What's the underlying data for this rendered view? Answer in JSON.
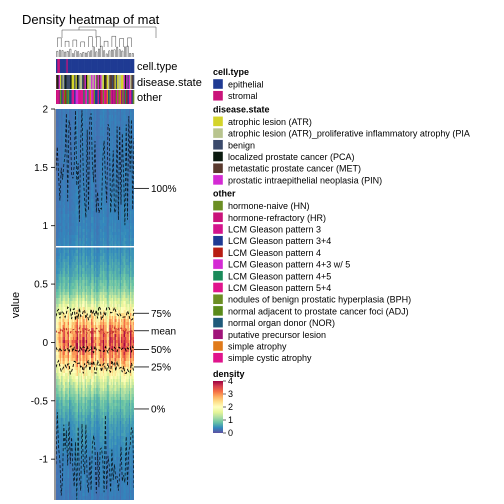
{
  "chart_data": {
    "type": "heatmap",
    "subtype": "density-heatmap",
    "title": "Density heatmap of mat",
    "ylabel": "value",
    "xlabel": "",
    "ylim": [
      -1.35,
      2.0
    ],
    "y_ticks": [
      -1,
      -0.5,
      0,
      0.5,
      1,
      1.5,
      2
    ],
    "y_tick_labels": [
      "-1",
      "-0.5",
      "0",
      "0.5",
      "1",
      "1.5",
      "2"
    ],
    "quantile_labels": [
      {
        "label": "100%",
        "value": 1.32
      },
      {
        "label": "75%",
        "value": 0.25
      },
      {
        "label": "mean",
        "value": 0.1
      },
      {
        "label": "50%",
        "value": -0.06
      },
      {
        "label": "25%",
        "value": -0.21
      },
      {
        "label": "0%",
        "value": -0.57
      }
    ],
    "separator_value": 0.82,
    "n_columns": 60,
    "density_profile": {
      "y": [
        2.0,
        1.5,
        1.0,
        0.82,
        0.6,
        0.45,
        0.35,
        0.25,
        0.15,
        0.05,
        0.0,
        -0.05,
        -0.15,
        -0.25,
        -0.35,
        -0.5,
        -0.7,
        -1.0,
        -1.35
      ],
      "density": [
        0.3,
        0.3,
        0.35,
        0.4,
        0.6,
        0.9,
        1.4,
        2.0,
        2.6,
        3.0,
        3.2,
        3.0,
        2.6,
        2.0,
        1.4,
        0.8,
        0.5,
        0.35,
        0.3
      ]
    },
    "annotations": [
      {
        "name": "cell.type",
        "label": "cell.type"
      },
      {
        "name": "disease.state",
        "label": "disease.state"
      },
      {
        "name": "other",
        "label": "other"
      }
    ],
    "legend": [
      {
        "title": "cell.type",
        "items": [
          {
            "label": "epithelial",
            "color": "#1f3a93"
          },
          {
            "label": "stromal",
            "color": "#c9137a"
          }
        ]
      },
      {
        "title": "disease.state",
        "items": [
          {
            "label": "atrophic lesion (ATR)",
            "color": "#d4d42a"
          },
          {
            "label": "atrophic lesion (ATR)_proliferative inflammatory atrophy (PIA",
            "color": "#b8c48e"
          },
          {
            "label": "benign",
            "color": "#3b4a6b"
          },
          {
            "label": "localized prostate cancer (PCA)",
            "color": "#0b1a0f"
          },
          {
            "label": "metastatic prostate cancer  (MET)",
            "color": "#5a3a2e"
          },
          {
            "label": "prostatic intraepithelial neoplasia (PIN)",
            "color": "#d42ad4"
          }
        ]
      },
      {
        "title": "other",
        "items": [
          {
            "label": "hormone-naive  (HN)",
            "color": "#6b8e23"
          },
          {
            "label": "hormone-refractory (HR)",
            "color": "#c9137a"
          },
          {
            "label": "LCM Gleason pattern 3",
            "color": "#d4148c"
          },
          {
            "label": "LCM Gleason pattern 3+4",
            "color": "#1f3a93"
          },
          {
            "label": "LCM Gleason pattern 4",
            "color": "#b81d13"
          },
          {
            "label": "LCM Gleason pattern 4+3 w/ 5",
            "color": "#d42ad4"
          },
          {
            "label": "LCM Gleason pattern 4+5",
            "color": "#1a8a5a"
          },
          {
            "label": "LCM Gleason pattern 5+4",
            "color": "#e0148c"
          },
          {
            "label": "nodules of benign prostatic hyperplasia  (BPH)",
            "color": "#6b8e23"
          },
          {
            "label": "normal adjacent to prostate cancer foci (ADJ)",
            "color": "#5a8a1a"
          },
          {
            "label": "normal organ donor (NOR)",
            "color": "#1f5a7a"
          },
          {
            "label": "putative precursor lesion",
            "color": "#a0147a"
          },
          {
            "label": "simple atrophy",
            "color": "#e07a1a"
          },
          {
            "label": "simple cystic atrophy",
            "color": "#e0148c"
          }
        ]
      }
    ],
    "color_scale": {
      "title": "density",
      "ticks": [
        "4",
        "3",
        "2",
        "1",
        "0"
      ],
      "stops": [
        "#5e4fa2",
        "#3288bd",
        "#66c2a5",
        "#abdda4",
        "#e6f598",
        "#ffffbf",
        "#fee08b",
        "#fdae61",
        "#f46d43",
        "#d53e4f",
        "#9e0142"
      ]
    }
  }
}
